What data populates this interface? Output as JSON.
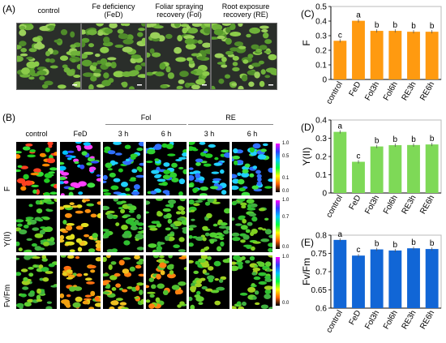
{
  "panels": {
    "A": {
      "letter": "(A)",
      "headers": [
        "control",
        "Fe deficiency\n(FeD)",
        "Foliar spraying\nrecovery (Fol)",
        "Root exposure\nrecovery (RE)"
      ]
    },
    "B": {
      "letter": "(B)",
      "group_headers": [
        "Fol",
        "RE"
      ],
      "col_headers": [
        "control",
        "FeD",
        "3 h",
        "6 h",
        "3 h",
        "6 h"
      ],
      "row_labels": [
        "F",
        "Y(II)",
        "Fv/Fm"
      ],
      "scales": [
        [
          "1.0",
          "0.5",
          "0.1",
          "0.0"
        ],
        [
          "1.0",
          "0.7",
          "0.0"
        ],
        [
          "1.0",
          "0.0"
        ]
      ],
      "colorbar_colors": [
        "#ff00ff",
        "#3040ff",
        "#00c8ff",
        "#00ff40",
        "#ffff00",
        "#ff6000",
        "#000000"
      ]
    }
  },
  "chart_data": [
    {
      "id": "C",
      "letter": "(C)",
      "type": "bar",
      "categories": [
        "control",
        "FeD",
        "Fol3h",
        "Fol6h",
        "RE3h",
        "RE6h"
      ],
      "values": [
        0.265,
        0.402,
        0.333,
        0.333,
        0.327,
        0.327
      ],
      "letters": [
        "c",
        "a",
        "b",
        "b",
        "b",
        "b"
      ],
      "ylabel": "F",
      "ylim": [
        0,
        0.5
      ],
      "yticks": [
        "0",
        "0.1",
        "0.2",
        "0.3",
        "0.4",
        "0.5"
      ],
      "color": "#ff9a10"
    },
    {
      "id": "D",
      "letter": "(D)",
      "type": "bar",
      "categories": [
        "control",
        "FeD",
        "Fol3h",
        "Fol6h",
        "RE3h",
        "RE6h"
      ],
      "values": [
        0.335,
        0.171,
        0.255,
        0.262,
        0.263,
        0.266
      ],
      "letters": [
        "a",
        "c",
        "b",
        "b",
        "b",
        "b"
      ],
      "ylabel": "Y(II)",
      "ylim": [
        0,
        0.4
      ],
      "yticks": [
        "0",
        "0.1",
        "0.2",
        "0.3",
        "0.4"
      ],
      "color": "#7ed957"
    },
    {
      "id": "E",
      "letter": "(E)",
      "type": "bar",
      "categories": [
        "control",
        "FeD",
        "Fol3h",
        "Fol6h",
        "RE3h",
        "RE6h"
      ],
      "values": [
        0.787,
        0.744,
        0.761,
        0.758,
        0.764,
        0.762
      ],
      "letters": [
        "a",
        "c",
        "b",
        "b",
        "b",
        "b"
      ],
      "ylabel": "Fv/Fm",
      "ylim": [
        0.6,
        0.8
      ],
      "yticks": [
        "0.6",
        "0.65",
        "0.7",
        "0.75",
        "0.8"
      ],
      "color": "#1166d6"
    }
  ]
}
